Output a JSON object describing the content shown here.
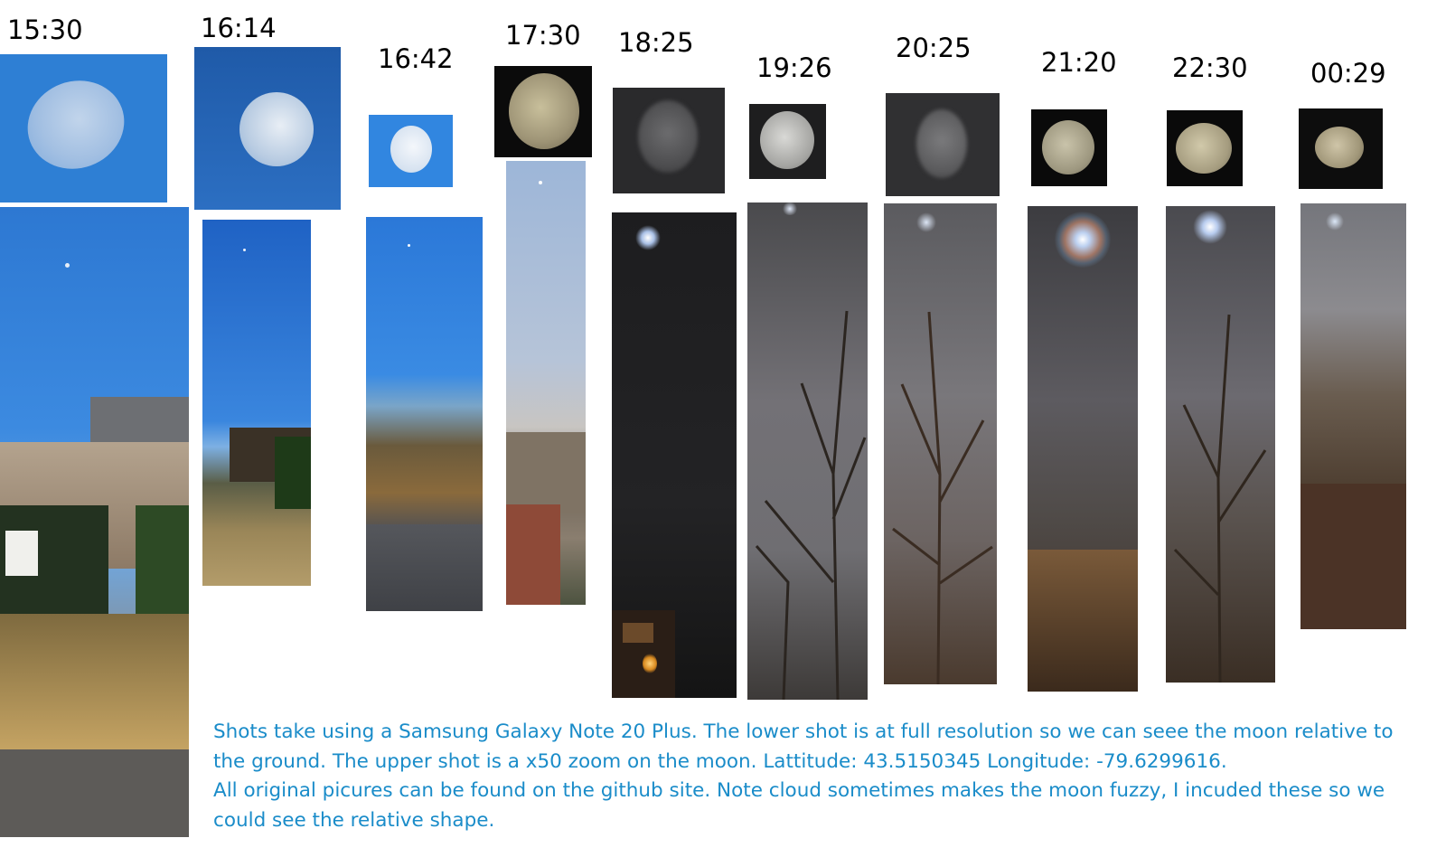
{
  "shots": [
    {
      "time": "15:30"
    },
    {
      "time": "16:14"
    },
    {
      "time": "16:42"
    },
    {
      "time": "17:30"
    },
    {
      "time": "18:25"
    },
    {
      "time": "19:26"
    },
    {
      "time": "20:25"
    },
    {
      "time": "21:20"
    },
    {
      "time": "22:30"
    },
    {
      "time": "00:29"
    }
  ],
  "caption": {
    "line1": "Shots take using a Samsung Galaxy Note 20 Plus. The lower shot is at full resolution so we can seee the moon relative to",
    "line2": "the ground. The upper shot is a x50 zoom on the moon. Lattitude: 43.5150345 Longitude: -79.6299616.",
    "line3": "All original picures can be found on the github site. Note cloud sometimes makes the moon fuzzy, I incuded these so we",
    "line4": "could see the relative shape."
  },
  "colors": {
    "caption": "#1a8cc9",
    "day_sky": "#2f7fd6",
    "night_sky": "#1c1c1e"
  }
}
